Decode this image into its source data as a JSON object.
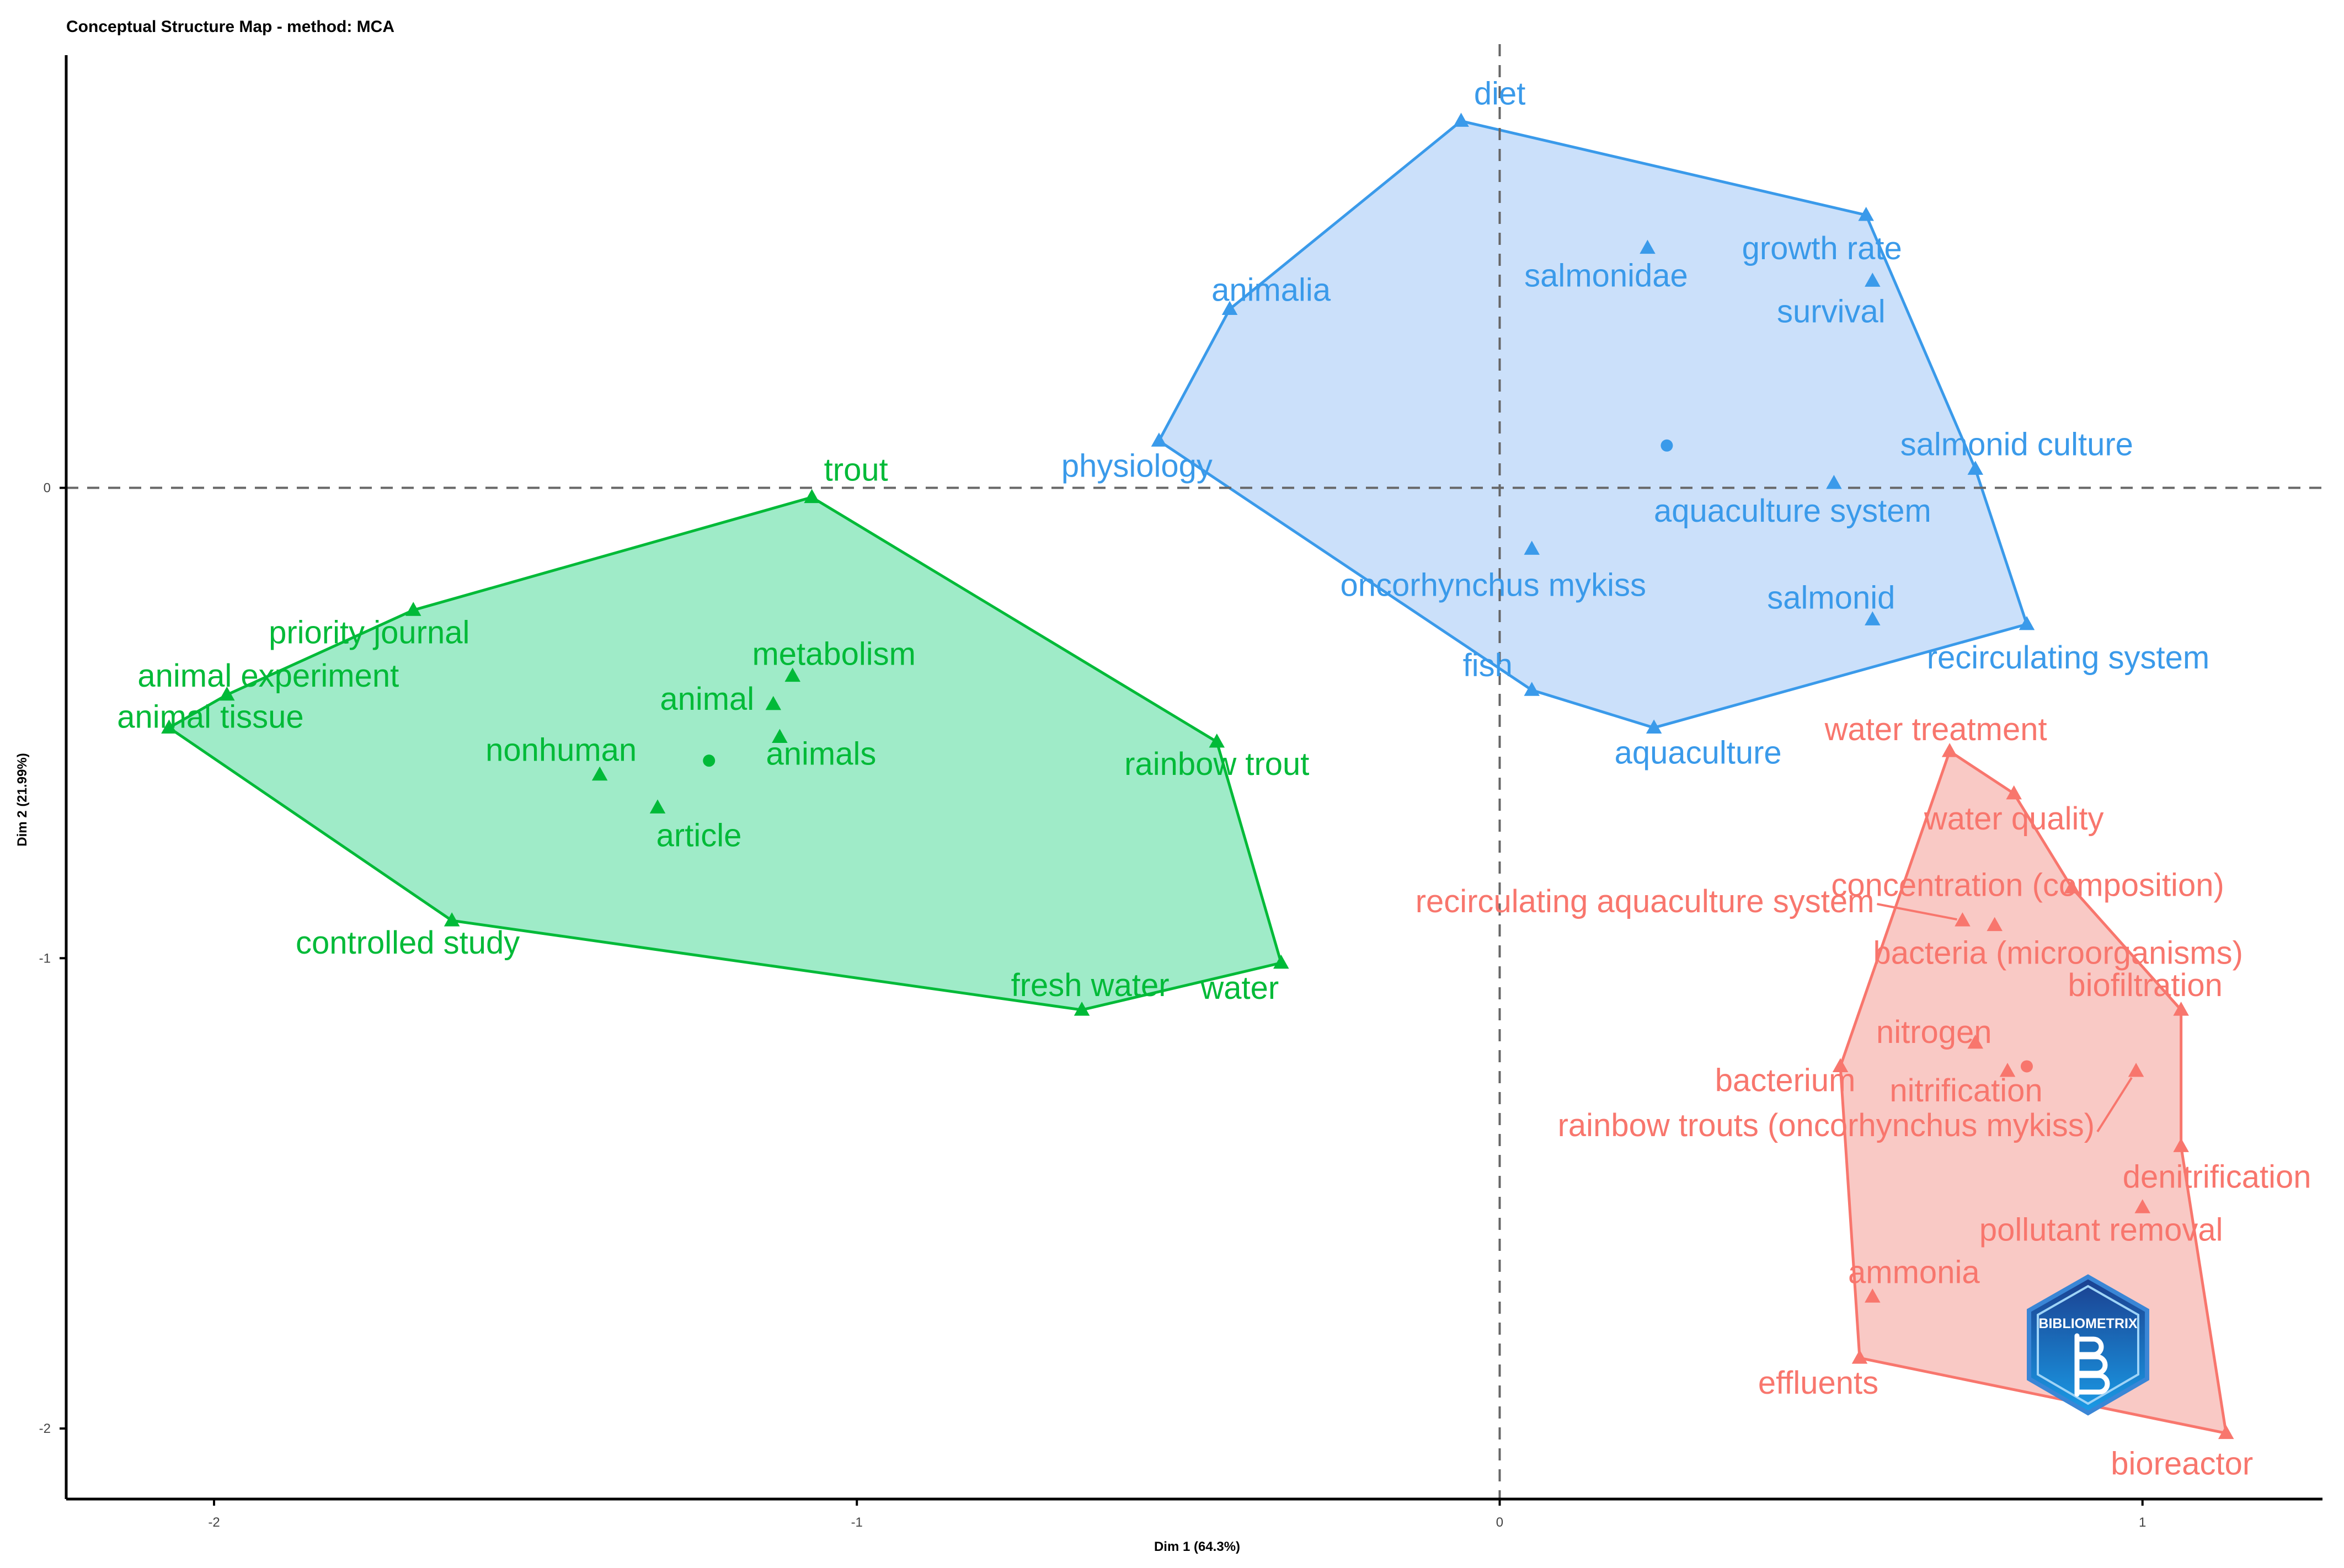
{
  "chart_data": {
    "type": "scatter",
    "title": "Conceptual Structure Map - method: MCA",
    "xlabel": "Dim 1 (64.3%)",
    "ylabel": "Dim 2 (21.99%)",
    "xlim": [
      -2.23,
      1.28
    ],
    "ylim": [
      -2.15,
      0.92
    ],
    "xticks": [
      -2,
      -1,
      0,
      1
    ],
    "yticks": [
      0,
      -1,
      -2
    ],
    "grid": false,
    "reference_lines": {
      "x": 0,
      "y": 0,
      "style": "dashed"
    },
    "clusters": [
      {
        "color": "#00BA38",
        "fill": "#9AEAC5",
        "centroid": [
          -1.23,
          -0.58
        ],
        "hull": [
          "trout",
          "rainbow trout",
          "water",
          "fresh water",
          "controlled study",
          "animal tissue",
          "animal experiment",
          "priority journal"
        ],
        "points": [
          {
            "label": "trout",
            "x": -1.07,
            "y": -0.02
          },
          {
            "label": "priority journal",
            "x": -1.69,
            "y": -0.26
          },
          {
            "label": "animal experiment",
            "x": -1.98,
            "y": -0.44
          },
          {
            "label": "animal tissue",
            "x": -2.07,
            "y": -0.51
          },
          {
            "label": "metabolism",
            "x": -1.1,
            "y": -0.4
          },
          {
            "label": "animal",
            "x": -1.13,
            "y": -0.46
          },
          {
            "label": "animals",
            "x": -1.12,
            "y": -0.53
          },
          {
            "label": "nonhuman",
            "x": -1.4,
            "y": -0.61
          },
          {
            "label": "article",
            "x": -1.31,
            "y": -0.68
          },
          {
            "label": "rainbow trout",
            "x": -0.44,
            "y": -0.54
          },
          {
            "label": "controlled study",
            "x": -1.63,
            "y": -0.92
          },
          {
            "label": "fresh water",
            "x": -0.65,
            "y": -1.11
          },
          {
            "label": "water",
            "x": -0.34,
            "y": -1.01
          }
        ]
      },
      {
        "color": "#3A9AEA",
        "fill": "#C8DEFA",
        "centroid": [
          0.26,
          0.09
        ],
        "hull": [
          "diet",
          "growth rate",
          "salmonid culture",
          "recirculating system",
          "aquaculture",
          "fish",
          "physiology",
          "animalia"
        ],
        "points": [
          {
            "label": "diet",
            "x": -0.06,
            "y": 0.78
          },
          {
            "label": "animalia",
            "x": -0.42,
            "y": 0.38
          },
          {
            "label": "salmonidae",
            "x": 0.23,
            "y": 0.51
          },
          {
            "label": "growth rate",
            "x": 0.57,
            "y": 0.58
          },
          {
            "label": "survival",
            "x": 0.58,
            "y": 0.44
          },
          {
            "label": "physiology",
            "x": -0.53,
            "y": 0.1
          },
          {
            "label": "salmonid culture",
            "x": 0.74,
            "y": 0.04
          },
          {
            "label": "aquaculture system",
            "x": 0.52,
            "y": 0.01
          },
          {
            "label": "oncorhynchus mykiss",
            "x": 0.05,
            "y": -0.13
          },
          {
            "label": "salmonid",
            "x": 0.58,
            "y": -0.28
          },
          {
            "label": "recirculating system",
            "x": 0.82,
            "y": -0.29
          },
          {
            "label": "fish",
            "x": 0.05,
            "y": -0.43
          },
          {
            "label": "aquaculture",
            "x": 0.24,
            "y": -0.51
          }
        ]
      },
      {
        "color": "#F8766D",
        "fill": "#F9C6C2",
        "centroid": [
          0.82,
          -1.23
        ],
        "hull": [
          "water treatment",
          "water quality",
          "concentration (composition)",
          "biofiltration",
          "denitrification",
          "bioreactor",
          "effluents",
          "bacterium"
        ],
        "points": [
          {
            "label": "water treatment",
            "x": 0.7,
            "y": -0.56
          },
          {
            "label": "water quality",
            "x": 0.8,
            "y": -0.65
          },
          {
            "label": "concentration (composition)",
            "x": 0.89,
            "y": -0.85
          },
          {
            "label": "recirculating aquaculture system",
            "x": 0.72,
            "y": -0.92
          },
          {
            "label": "bacteria (microorganisms)",
            "x": 0.77,
            "y": -0.93
          },
          {
            "label": "nitrogen",
            "x": 0.74,
            "y": -1.18
          },
          {
            "label": "biofiltration",
            "x": 1.06,
            "y": -1.11
          },
          {
            "label": "nitrification",
            "x": 0.79,
            "y": -1.24
          },
          {
            "label": "bacterium",
            "x": 0.53,
            "y": -1.23
          },
          {
            "label": "rainbow trouts (oncorhynchus mykiss)",
            "x": 0.99,
            "y": -1.24
          },
          {
            "label": "denitrification",
            "x": 1.06,
            "y": -1.4
          },
          {
            "label": "pollutant removal",
            "x": 1.0,
            "y": -1.53
          },
          {
            "label": "ammonia",
            "x": 0.58,
            "y": -1.72
          },
          {
            "label": "effluents",
            "x": 0.56,
            "y": -1.85
          },
          {
            "label": "bioreactor",
            "x": 1.13,
            "y": -2.01
          }
        ]
      }
    ]
  },
  "logo": {
    "text": "BIBLIOMETRIX"
  }
}
